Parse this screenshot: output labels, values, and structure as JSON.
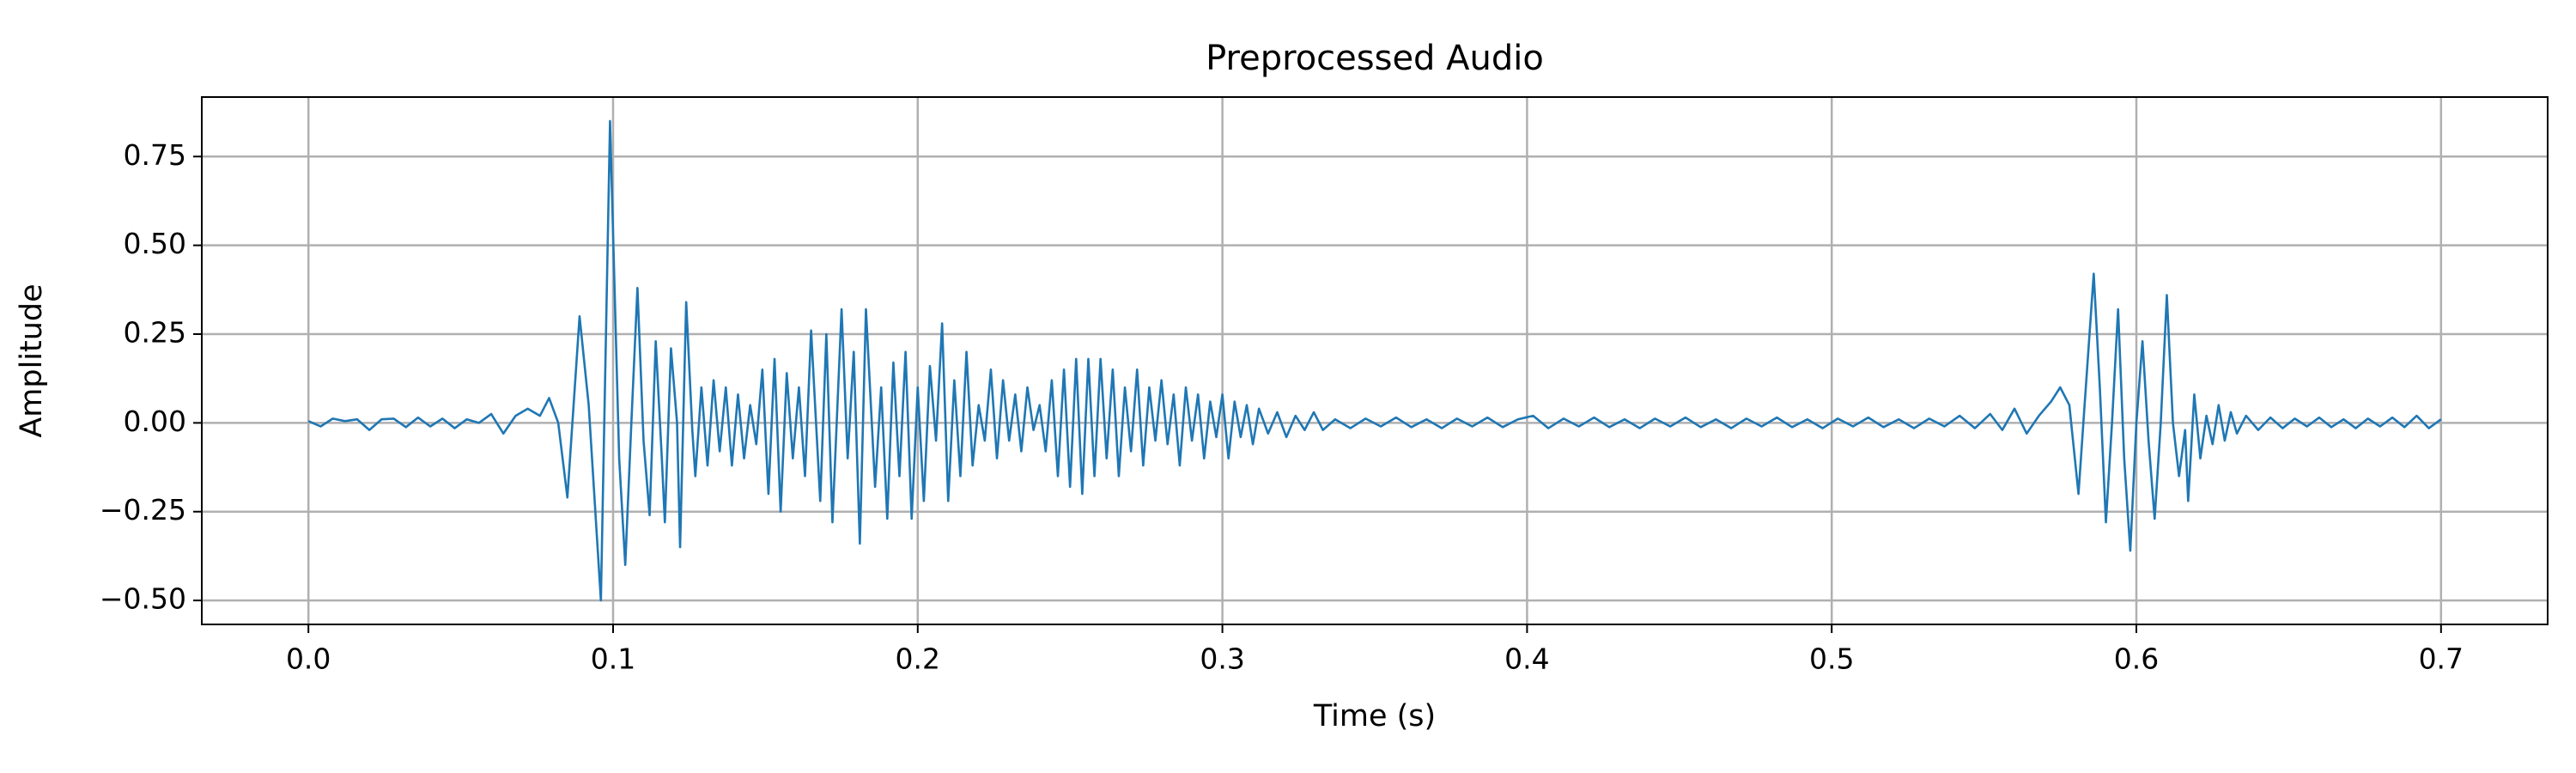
{
  "chart_data": {
    "type": "line",
    "title": "Preprocessed Audio",
    "x_label": "Time (s)",
    "y_label": "Amplitude",
    "color": "#1f77b4",
    "grid": true,
    "xlim": [
      -0.035,
      0.735
    ],
    "ylim": [
      -0.5675,
      0.9175
    ],
    "xticks": [
      {
        "value": 0,
        "label": "0.0"
      },
      0.1,
      0.2,
      0.3,
      0.4,
      0.5,
      0.6,
      0.7
    ],
    "yticks": [
      {
        "value": -0.5,
        "label": "−0.50"
      },
      {
        "value": -0.25,
        "label": "−0.25"
      },
      {
        "value": 0,
        "label": "0.00"
      },
      {
        "value": 0.25,
        "label": "0.25"
      },
      {
        "value": 0.5,
        "label": "0.50"
      },
      {
        "value": 0.75,
        "label": "0.75"
      }
    ],
    "x": [
      0,
      0.004,
      0.008,
      0.012,
      0.016,
      0.02,
      0.024,
      0.028,
      0.032,
      0.036,
      0.04,
      0.044,
      0.048,
      0.052,
      0.056,
      0.06,
      0.064,
      0.068,
      0.072,
      0.076,
      0.079,
      0.082,
      0.085,
      0.089,
      0.092,
      0.096,
      0.099,
      0.102,
      0.104,
      0.106,
      0.108,
      0.11,
      0.112,
      0.114,
      0.116,
      0.117,
      0.119,
      0.121,
      0.122,
      0.124,
      0.126,
      0.127,
      0.129,
      0.131,
      0.133,
      0.135,
      0.137,
      0.139,
      0.141,
      0.143,
      0.145,
      0.147,
      0.149,
      0.151,
      0.153,
      0.155,
      0.157,
      0.159,
      0.161,
      0.163,
      0.165,
      0.168,
      0.17,
      0.172,
      0.175,
      0.177,
      0.179,
      0.181,
      0.183,
      0.186,
      0.188,
      0.19,
      0.192,
      0.194,
      0.196,
      0.198,
      0.2,
      0.202,
      0.204,
      0.206,
      0.208,
      0.21,
      0.212,
      0.214,
      0.216,
      0.218,
      0.22,
      0.222,
      0.224,
      0.226,
      0.228,
      0.23,
      0.232,
      0.234,
      0.236,
      0.238,
      0.24,
      0.242,
      0.244,
      0.246,
      0.248,
      0.25,
      0.252,
      0.254,
      0.256,
      0.258,
      0.26,
      0.262,
      0.264,
      0.266,
      0.268,
      0.27,
      0.272,
      0.274,
      0.276,
      0.278,
      0.28,
      0.282,
      0.284,
      0.286,
      0.288,
      0.29,
      0.292,
      0.294,
      0.296,
      0.298,
      0.3,
      0.302,
      0.304,
      0.306,
      0.308,
      0.31,
      0.312,
      0.315,
      0.318,
      0.321,
      0.324,
      0.327,
      0.33,
      0.333,
      0.337,
      0.342,
      0.347,
      0.352,
      0.357,
      0.362,
      0.367,
      0.372,
      0.377,
      0.382,
      0.387,
      0.392,
      0.397,
      0.402,
      0.407,
      0.412,
      0.417,
      0.422,
      0.427,
      0.432,
      0.437,
      0.442,
      0.447,
      0.452,
      0.457,
      0.462,
      0.467,
      0.472,
      0.477,
      0.482,
      0.487,
      0.492,
      0.497,
      0.502,
      0.507,
      0.512,
      0.517,
      0.522,
      0.527,
      0.532,
      0.537,
      0.542,
      0.547,
      0.552,
      0.556,
      0.56,
      0.564,
      0.568,
      0.572,
      0.575,
      0.578,
      0.581,
      0.583,
      0.586,
      0.588,
      0.59,
      0.592,
      0.594,
      0.596,
      0.598,
      0.6,
      0.602,
      0.604,
      0.606,
      0.608,
      0.61,
      0.612,
      0.614,
      0.616,
      0.617,
      0.619,
      0.621,
      0.623,
      0.625,
      0.627,
      0.629,
      0.631,
      0.633,
      0.636,
      0.64,
      0.644,
      0.648,
      0.652,
      0.656,
      0.66,
      0.664,
      0.668,
      0.672,
      0.676,
      0.68,
      0.684,
      0.688,
      0.692,
      0.696,
      0.7
    ],
    "values": [
      0.005,
      -0.01,
      0.012,
      0.005,
      0.01,
      -0.02,
      0.01,
      0.012,
      -0.012,
      0.015,
      -0.01,
      0.012,
      -0.015,
      0.01,
      0,
      0.025,
      -0.03,
      0.02,
      0.04,
      0.02,
      0.07,
      0,
      -0.21,
      0.3,
      0.05,
      -0.5,
      0.85,
      -0.1,
      -0.4,
      0,
      0.38,
      -0.05,
      -0.26,
      0.23,
      -0.1,
      -0.28,
      0.21,
      0,
      -0.35,
      0.34,
      -0.02,
      -0.15,
      0.1,
      -0.12,
      0.12,
      -0.08,
      0.1,
      -0.12,
      0.08,
      -0.1,
      0.05,
      -0.06,
      0.15,
      -0.2,
      0.18,
      -0.25,
      0.14,
      -0.1,
      0.1,
      -0.15,
      0.26,
      -0.22,
      0.25,
      -0.28,
      0.32,
      -0.1,
      0.2,
      -0.34,
      0.32,
      -0.18,
      0.1,
      -0.27,
      0.17,
      -0.15,
      0.2,
      -0.27,
      0.1,
      -0.22,
      0.16,
      -0.05,
      0.28,
      -0.22,
      0.12,
      -0.15,
      0.2,
      -0.12,
      0.05,
      -0.05,
      0.15,
      -0.1,
      0.12,
      -0.05,
      0.08,
      -0.08,
      0.1,
      -0.02,
      0.05,
      -0.08,
      0.12,
      -0.15,
      0.15,
      -0.18,
      0.18,
      -0.2,
      0.18,
      -0.15,
      0.18,
      -0.1,
      0.15,
      -0.15,
      0.1,
      -0.08,
      0.15,
      -0.12,
      0.1,
      -0.05,
      0.12,
      -0.06,
      0.08,
      -0.12,
      0.1,
      -0.05,
      0.08,
      -0.1,
      0.06,
      -0.04,
      0.08,
      -0.1,
      0.06,
      -0.04,
      0.05,
      -0.06,
      0.04,
      -0.03,
      0.03,
      -0.04,
      0.02,
      -0.02,
      0.03,
      -0.02,
      0.01,
      -0.015,
      0.012,
      -0.01,
      0.015,
      -0.012,
      0.01,
      -0.015,
      0.012,
      -0.01,
      0.015,
      -0.012,
      0.01,
      0.02,
      -0.015,
      0.012,
      -0.01,
      0.015,
      -0.012,
      0.01,
      -0.015,
      0.012,
      -0.01,
      0.015,
      -0.012,
      0.01,
      -0.015,
      0.012,
      -0.01,
      0.015,
      -0.012,
      0.01,
      -0.015,
      0.012,
      -0.01,
      0.015,
      -0.012,
      0.01,
      -0.015,
      0.012,
      -0.01,
      0.02,
      -0.015,
      0.025,
      -0.02,
      0.04,
      -0.03,
      0.02,
      0.06,
      0.1,
      0.05,
      -0.2,
      0.05,
      0.42,
      0.1,
      -0.28,
      0,
      0.32,
      -0.1,
      -0.36,
      0,
      0.23,
      -0.05,
      -0.27,
      0,
      0.36,
      0,
      -0.15,
      -0.02,
      -0.22,
      0.08,
      -0.1,
      0.02,
      -0.06,
      0.05,
      -0.05,
      0.03,
      -0.03,
      0.02,
      -0.02,
      0.015,
      -0.015,
      0.012,
      -0.01,
      0.015,
      -0.012,
      0.01,
      -0.015,
      0.012,
      -0.01,
      0.015,
      -0.012,
      0.02,
      -0.015,
      0.01
    ]
  }
}
